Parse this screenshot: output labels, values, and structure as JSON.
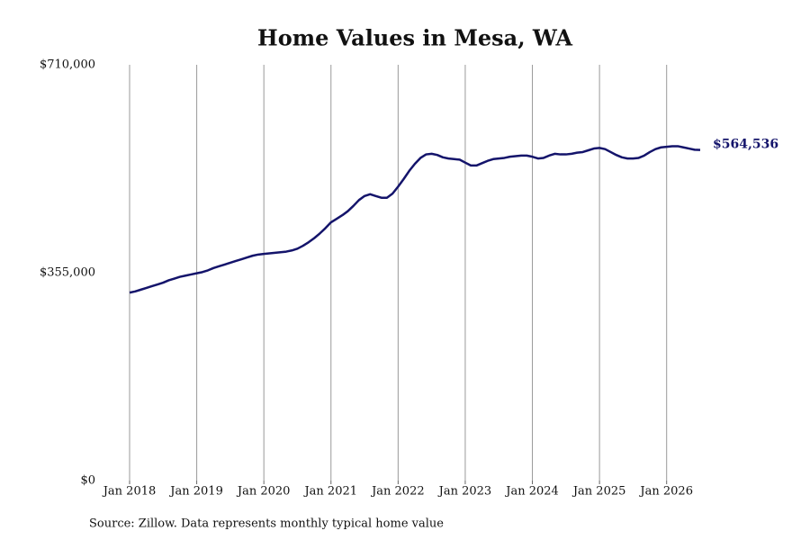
{
  "chart_data": {
    "type": "line",
    "title": "Home Values in Mesa, WA",
    "source": "Source: Zillow. Data represents monthly typical home value",
    "x": [
      "2018-01",
      "2018-02",
      "2018-03",
      "2018-04",
      "2018-05",
      "2018-06",
      "2018-07",
      "2018-08",
      "2018-09",
      "2018-10",
      "2018-11",
      "2018-12",
      "2019-01",
      "2019-02",
      "2019-03",
      "2019-04",
      "2019-05",
      "2019-06",
      "2019-07",
      "2019-08",
      "2019-09",
      "2019-10",
      "2019-11",
      "2019-12",
      "2020-01",
      "2020-02",
      "2020-03",
      "2020-04",
      "2020-05",
      "2020-06",
      "2020-07",
      "2020-08",
      "2020-09",
      "2020-10",
      "2020-11",
      "2020-12",
      "2021-01",
      "2021-02",
      "2021-03",
      "2021-04",
      "2021-05",
      "2021-06",
      "2021-07",
      "2021-08",
      "2021-09",
      "2021-10",
      "2021-11",
      "2021-12",
      "2022-01",
      "2022-02",
      "2022-03",
      "2022-04",
      "2022-05",
      "2022-06",
      "2022-07",
      "2022-08",
      "2022-09",
      "2022-10",
      "2022-11",
      "2022-12",
      "2023-01",
      "2023-02",
      "2023-03",
      "2023-04",
      "2023-05",
      "2023-06",
      "2023-07",
      "2023-08",
      "2023-09",
      "2023-10",
      "2023-11",
      "2023-12",
      "2024-01",
      "2024-02",
      "2024-03",
      "2024-04",
      "2024-05",
      "2024-06",
      "2024-07",
      "2024-08",
      "2024-09",
      "2024-10",
      "2024-11",
      "2024-12",
      "2025-01",
      "2025-02",
      "2025-03",
      "2025-04",
      "2025-05",
      "2025-06",
      "2025-07",
      "2025-08",
      "2025-09",
      "2025-10",
      "2025-11",
      "2025-12",
      "2026-01",
      "2026-02",
      "2026-03",
      "2026-04",
      "2026-05",
      "2026-06",
      "2026-07"
    ],
    "series": [
      {
        "color": "#14146b",
        "values": [
          321000,
          323000,
          326000,
          329000,
          332000,
          335000,
          338000,
          342000,
          345000,
          348000,
          350000,
          352000,
          354000,
          356000,
          359000,
          363000,
          366000,
          369000,
          372000,
          375000,
          378000,
          381000,
          384000,
          386000,
          387000,
          388000,
          389000,
          390000,
          391000,
          393000,
          396000,
          401000,
          407000,
          414000,
          422000,
          431000,
          441000,
          447000,
          453000,
          460000,
          469000,
          479000,
          486000,
          489000,
          486000,
          483000,
          483000,
          490000,
          502000,
          515000,
          529000,
          541000,
          551000,
          557000,
          558000,
          556000,
          552000,
          550000,
          549000,
          548000,
          543000,
          538000,
          538000,
          542000,
          546000,
          549000,
          550000,
          551000,
          553000,
          554000,
          555000,
          555000,
          553000,
          550000,
          551000,
          555000,
          558000,
          557000,
          557000,
          558000,
          560000,
          561000,
          564000,
          567000,
          568000,
          566000,
          561000,
          556000,
          552000,
          550000,
          550000,
          551000,
          555000,
          561000,
          566000,
          569000,
          570000,
          571000,
          571000,
          569000,
          567000,
          565000,
          564536
        ],
        "value_labels": [
          null,
          null,
          null,
          null,
          null,
          null,
          null,
          null,
          null,
          null,
          null,
          null,
          null,
          null,
          null,
          null,
          null,
          null,
          null,
          null,
          null,
          null,
          null,
          null,
          null,
          null,
          null,
          null,
          null,
          null,
          null,
          null,
          null,
          null,
          null,
          null,
          null,
          null,
          null,
          null,
          null,
          null,
          null,
          null,
          null,
          null,
          null,
          null,
          null,
          null,
          null,
          null,
          null,
          null,
          null,
          null,
          null,
          null,
          null,
          null,
          null,
          null,
          null,
          null,
          null,
          null,
          null,
          null,
          null,
          null,
          null,
          null,
          null,
          null,
          null,
          null,
          null,
          null,
          null,
          null,
          null,
          null,
          null,
          null,
          null,
          null,
          null,
          null,
          null,
          null,
          null,
          null,
          null,
          null,
          null,
          null,
          null,
          null,
          null,
          null,
          null,
          null,
          "$564,536"
        ]
      }
    ],
    "xlim": [
      "2018-01",
      "2026-07"
    ],
    "xticks": [
      {
        "value": "2018-01",
        "label": "Jan 2018"
      },
      {
        "value": "2019-01",
        "label": "Jan 2019"
      },
      {
        "value": "2020-01",
        "label": "Jan 2020"
      },
      {
        "value": "2021-01",
        "label": "Jan 2021"
      },
      {
        "value": "2022-01",
        "label": "Jan 2022"
      },
      {
        "value": "2023-01",
        "label": "Jan 2023"
      },
      {
        "value": "2024-01",
        "label": "Jan 2024"
      },
      {
        "value": "2025-01",
        "label": "Jan 2025"
      },
      {
        "value": "2026-01",
        "label": "Jan 2026"
      }
    ],
    "ylim": [
      0,
      710000
    ],
    "yticks": [
      {
        "value": 0,
        "label": "$0"
      },
      {
        "value": 355000,
        "label": "$355,000"
      },
      {
        "value": 710000,
        "label": "$710,000"
      }
    ],
    "grid": "x"
  }
}
